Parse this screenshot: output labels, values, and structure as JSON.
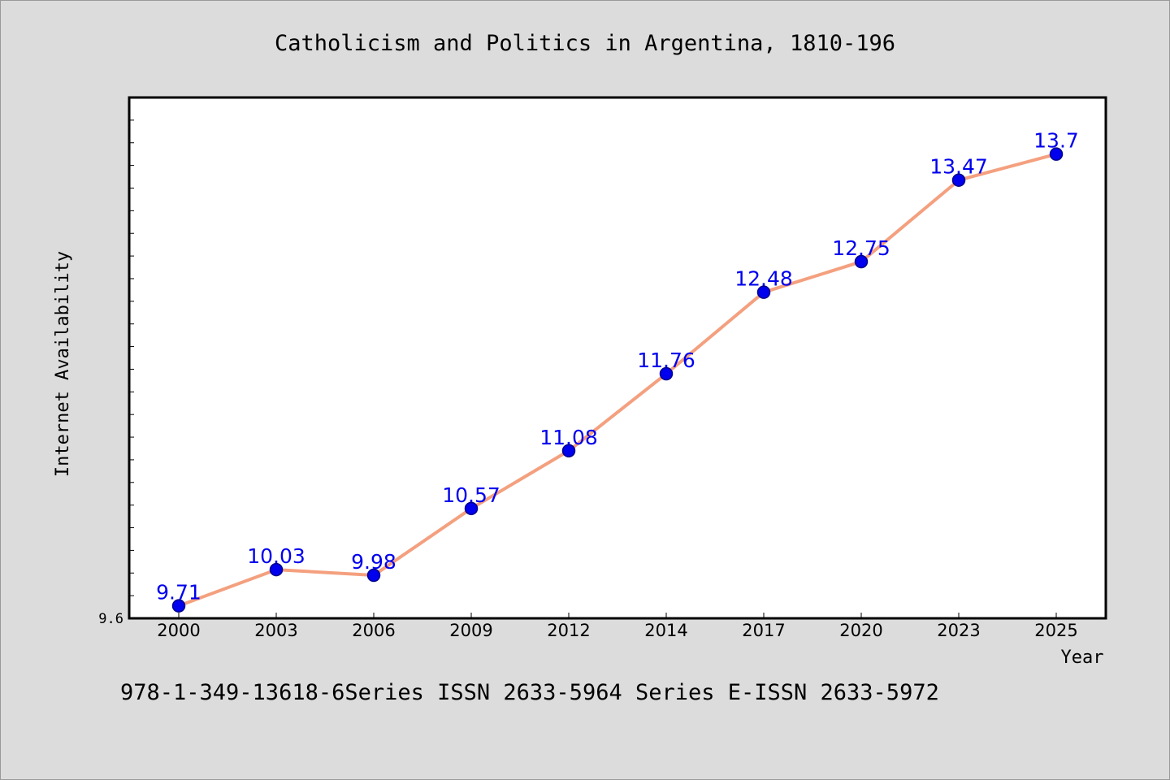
{
  "chart_data": {
    "type": "line",
    "title": "Catholicism and Politics in Argentina, 1810-196",
    "xlabel": "Year",
    "ylabel": "Internet Availability",
    "categories": [
      "2000",
      "2003",
      "2006",
      "2009",
      "2012",
      "2014",
      "2017",
      "2020",
      "2023",
      "2025"
    ],
    "series": [
      {
        "values": [
          9.71,
          10.03,
          9.98,
          10.57,
          11.08,
          11.76,
          12.48,
          12.75,
          13.47,
          13.7
        ],
        "labels": [
          "9.71",
          "10.03",
          "9.98",
          "10.57",
          "11.08",
          "11.76",
          "12.48",
          "12.75",
          "13.47",
          "13.7"
        ]
      }
    ],
    "y_tick_label": "9.6",
    "ylim": [
      9.6,
      14.2
    ],
    "grid": false,
    "colors": {
      "line": "#f4a07f",
      "marker": "#0000ee",
      "marker_edge": "#00008b",
      "label": "#0000ee"
    }
  },
  "footer": {
    "text": "978-1-349-13618-6Series ISSN 2633-5964 Series E-ISSN 2633-5972"
  }
}
